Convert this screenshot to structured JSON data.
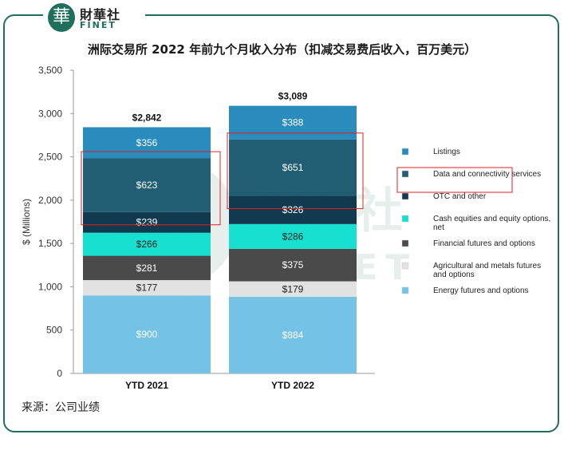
{
  "header": {
    "logo_glyph": "華",
    "logo_cn": "財華社",
    "logo_en": "FINET",
    "brand_color": "#1f6f5c"
  },
  "title": "洲际交易所 2022 年前九个月收入分布（扣减交易费后收入，百万美元）",
  "source": "来源：公司业绩",
  "chart_data": {
    "type": "bar",
    "stacked": true,
    "categories": [
      "YTD 2021",
      "YTD 2022"
    ],
    "ylabel": "$ (Millions)",
    "ylim": [
      0,
      3500
    ],
    "yticks": [
      "0",
      "500",
      "1,000",
      "1,500",
      "2,000",
      "2,500",
      "3,000",
      "3,500"
    ],
    "totals": [
      "$2,842",
      "$3,089"
    ],
    "series": [
      {
        "name": "Energy futures and options",
        "color": "#74c2e6",
        "label_color": "#ffffff",
        "values": [
          900,
          884
        ],
        "labels": [
          "$900",
          "$884"
        ]
      },
      {
        "name": "Agricultural and metals futures and options",
        "color": "#e2e2e2",
        "label_color": "#222222",
        "values": [
          177,
          179
        ],
        "labels": [
          "$177",
          "$179"
        ]
      },
      {
        "name": "Financial futures and options",
        "color": "#4a4a4a",
        "label_color": "#ffffff",
        "values": [
          281,
          375
        ],
        "labels": [
          "$281",
          "$375"
        ]
      },
      {
        "name": "Cash equities and equity options, net",
        "color": "#17e0d0",
        "label_color": "#222222",
        "values": [
          266,
          286
        ],
        "labels": [
          "$266",
          "$286"
        ]
      },
      {
        "name": "OTC and other",
        "color": "#123a4e",
        "label_color": "#ffffff",
        "values": [
          239,
          326
        ],
        "labels": [
          "$239",
          "$326"
        ]
      },
      {
        "name": "Data and connectivity services",
        "color": "#215e73",
        "label_color": "#ffffff",
        "values": [
          623,
          651
        ],
        "labels": [
          "$623",
          "$651"
        ]
      },
      {
        "name": "Listings",
        "color": "#2a8bbd",
        "label_color": "#ffffff",
        "values": [
          356,
          388
        ],
        "labels": [
          "$356",
          "$388"
        ]
      }
    ],
    "legend_order": [
      "Listings",
      "Data and connectivity services",
      "OTC and other",
      "Cash equities and equity options, net",
      "Financial futures and options",
      "Agricultural and metals futures and options",
      "Energy futures and options"
    ],
    "legend_placement": "right",
    "highlight_color": "#e02020",
    "highlighted_series": "Data and connectivity services",
    "grid": false
  }
}
